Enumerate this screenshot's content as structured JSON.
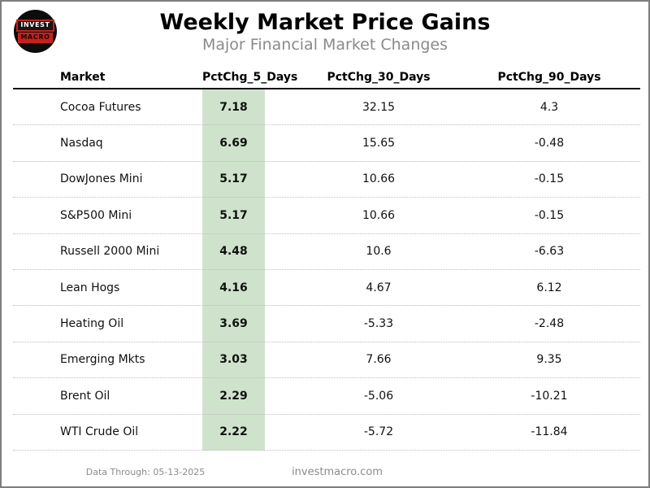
{
  "logo": {
    "line1": "INVEST",
    "line2": "MACRO"
  },
  "header": {
    "title": "Weekly Market Price Gains",
    "subtitle": "Major Financial Market Changes"
  },
  "table": {
    "columns": [
      "Market",
      "PctChg_5_Days",
      "PctChg_30_Days",
      "PctChg_90_Days"
    ],
    "rows": [
      {
        "market": "Cocoa Futures",
        "chg5": "7.18",
        "chg30": "32.15",
        "chg90": "4.3"
      },
      {
        "market": "Nasdaq",
        "chg5": "6.69",
        "chg30": "15.65",
        "chg90": "-0.48"
      },
      {
        "market": "DowJones Mini",
        "chg5": "5.17",
        "chg30": "10.66",
        "chg90": "-0.15"
      },
      {
        "market": "S&P500 Mini",
        "chg5": "5.17",
        "chg30": "10.66",
        "chg90": "-0.15"
      },
      {
        "market": "Russell 2000 Mini",
        "chg5": "4.48",
        "chg30": "10.6",
        "chg90": "-6.63"
      },
      {
        "market": "Lean Hogs",
        "chg5": "4.16",
        "chg30": "4.67",
        "chg90": "6.12"
      },
      {
        "market": "Heating Oil",
        "chg5": "3.69",
        "chg30": "-5.33",
        "chg90": "-2.48"
      },
      {
        "market": "Emerging Mkts",
        "chg5": "3.03",
        "chg30": "7.66",
        "chg90": "9.35"
      },
      {
        "market": "Brent Oil",
        "chg5": "2.29",
        "chg30": "-5.06",
        "chg90": "-10.21"
      },
      {
        "market": "WTI Crude Oil",
        "chg5": "2.22",
        "chg30": "-5.72",
        "chg90": "-11.84"
      }
    ]
  },
  "footer": {
    "data_through": "Data Through: 05-13-2025",
    "website": "investmacro.com"
  },
  "colors": {
    "highlight_green": "#cfe3cc",
    "logo_red": "#c4201d",
    "logo_black": "#0c0c0c",
    "subtitle_gray": "#8a8a8a",
    "border_gray": "#7d7d7d"
  },
  "chart_data": {
    "type": "table",
    "title": "Weekly Market Price Gains",
    "subtitle": "Major Financial Market Changes",
    "columns": [
      "Market",
      "PctChg_5_Days",
      "PctChg_30_Days",
      "PctChg_90_Days"
    ],
    "rows": [
      [
        "Cocoa Futures",
        7.18,
        32.15,
        4.3
      ],
      [
        "Nasdaq",
        6.69,
        15.65,
        -0.48
      ],
      [
        "DowJones Mini",
        5.17,
        10.66,
        -0.15
      ],
      [
        "S&P500 Mini",
        5.17,
        10.66,
        -0.15
      ],
      [
        "Russell 2000 Mini",
        4.48,
        10.6,
        -6.63
      ],
      [
        "Lean Hogs",
        4.16,
        4.67,
        6.12
      ],
      [
        "Heating Oil",
        3.69,
        -5.33,
        -2.48
      ],
      [
        "Emerging Mkts",
        3.03,
        7.66,
        9.35
      ],
      [
        "Brent Oil",
        2.29,
        -5.06,
        -10.21
      ],
      [
        "WTI Crude Oil",
        2.22,
        -5.72,
        -11.84
      ]
    ],
    "highlighted_column": "PctChg_5_Days",
    "notes": "5-day % change column highlighted light green; rows sorted descending by 5-day gain"
  }
}
